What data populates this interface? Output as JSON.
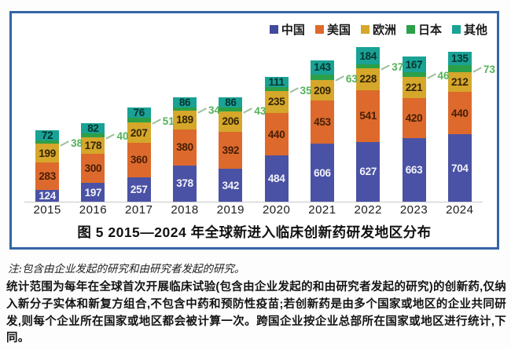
{
  "frame": {
    "border_color": "#3565A5"
  },
  "legend": [
    {
      "label": "中国",
      "color": "#414A9B"
    },
    {
      "label": "美国",
      "color": "#DD6A2C"
    },
    {
      "label": "欧洲",
      "color": "#D5A72A"
    },
    {
      "label": "日本",
      "color": "#2CA048"
    },
    {
      "label": "其他",
      "color": "#19A295"
    }
  ],
  "chart_data": {
    "type": "bar",
    "subtype": "stacked",
    "categories": [
      "2015",
      "2016",
      "2017",
      "2018",
      "2019",
      "2020",
      "2021",
      "2022",
      "2023",
      "2024"
    ],
    "series": [
      {
        "key": "china",
        "name": "中国",
        "color": "#4A52A5",
        "label_color": "#F2F2F8",
        "values": [
          124,
          197,
          257,
          378,
          342,
          484,
          606,
          627,
          663,
          704
        ]
      },
      {
        "key": "usa",
        "name": "美国",
        "color": "#DD6A2C",
        "label_color": "#471E07",
        "values": [
          283,
          300,
          360,
          380,
          392,
          440,
          453,
          541,
          420,
          440
        ]
      },
      {
        "key": "europe",
        "name": "欧洲",
        "color": "#D5A72A",
        "label_color": "#342407",
        "values": [
          199,
          178,
          207,
          189,
          206,
          235,
          209,
          228,
          221,
          212
        ]
      },
      {
        "key": "japan",
        "name": "日本",
        "color": "#2CA048",
        "label_color": "#55B259",
        "callout": true,
        "values": [
          38,
          40,
          51,
          34,
          43,
          35,
          63,
          37,
          46,
          73
        ]
      },
      {
        "key": "others",
        "name": "其他",
        "color": "#19A295",
        "label_color": "#06342F",
        "values": [
          72,
          82,
          76,
          86,
          86,
          111,
          143,
          184,
          167,
          135
        ]
      }
    ],
    "title": "图 5  2015—2024 年全球新进入临床创新药研发地区分布",
    "xlabel": "",
    "ylabel": "",
    "grid": false,
    "legend_position": "top-right"
  },
  "note": "注:包含由企业发起的研究和由研究者发起的研究。",
  "description": "统计范围为每年在全球首次开展临床试验(包含由企业发起的和由研究者发起的研究)的创新药,仅纳入新分子实体和新复方组合,不包含中药和预防性疫苗;若创新药是由多个国家或地区的企业共同研发,则每个企业所在国家或地区都会被计算一次。跨国企业按企业总部所在国家或地区进行统计,下同。"
}
